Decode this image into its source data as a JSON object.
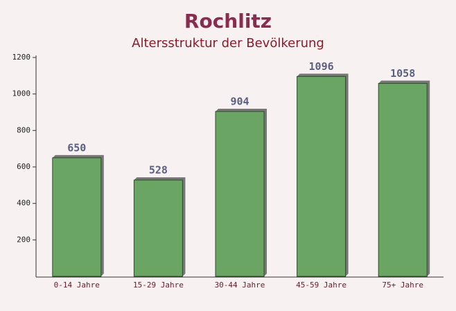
{
  "chart_data": {
    "type": "bar",
    "title": "Rochlitz",
    "subtitle": "Altersstruktur der Bevölkerung",
    "categories": [
      "0-14 Jahre",
      "15-29 Jahre",
      "30-44 Jahre",
      "45-59 Jahre",
      "75+ Jahre"
    ],
    "values": [
      650,
      528,
      904,
      1096,
      1058
    ],
    "color": "#6aa564",
    "ylim": [
      0,
      1200
    ],
    "yticks": [
      200,
      400,
      600,
      800,
      1000,
      1200
    ],
    "grid": false
  }
}
